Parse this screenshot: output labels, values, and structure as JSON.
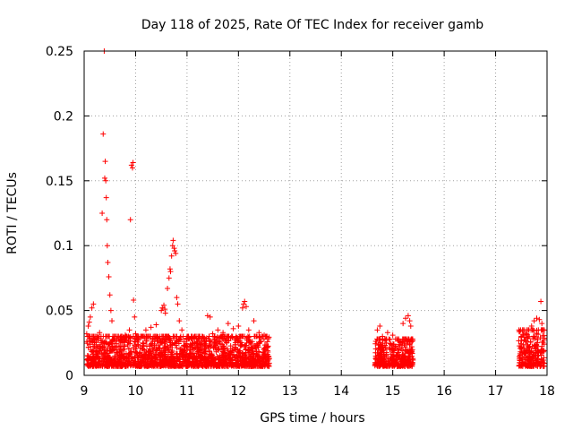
{
  "chart_data": {
    "type": "scatter",
    "title": "Day 118 of 2025, Rate Of TEC Index for receiver gamb",
    "xlabel": "GPS time / hours",
    "ylabel": "ROTI / TECUs",
    "xlim": [
      9,
      18
    ],
    "ylim": [
      0,
      0.25
    ],
    "xticks": [
      "9",
      "10",
      "11",
      "12",
      "13",
      "14",
      "15",
      "16",
      "17",
      "18"
    ],
    "yticks": [
      "0",
      "0.05",
      "0.1",
      "0.15",
      "0.2",
      "0.25"
    ],
    "grid": true,
    "marker": "+",
    "color": "#ff0000",
    "dense_bands": [
      {
        "x_range": [
          9.05,
          12.6
        ],
        "y_range": [
          0.003,
          0.03
        ]
      },
      {
        "x_range": [
          14.65,
          15.4
        ],
        "y_range": [
          0.003,
          0.028
        ]
      },
      {
        "x_range": [
          17.45,
          17.95
        ],
        "y_range": [
          0.003,
          0.035
        ]
      }
    ],
    "series": [
      {
        "name": "ROTI",
        "points": [
          [
            9.05,
            0.032
          ],
          [
            9.08,
            0.038
          ],
          [
            9.1,
            0.041
          ],
          [
            9.12,
            0.045
          ],
          [
            9.15,
            0.052
          ],
          [
            9.18,
            0.055
          ],
          [
            9.2,
            0.028
          ],
          [
            9.25,
            0.03
          ],
          [
            9.3,
            0.033
          ],
          [
            9.35,
            0.125
          ],
          [
            9.37,
            0.186
          ],
          [
            9.39,
            0.25
          ],
          [
            9.4,
            0.152
          ],
          [
            9.41,
            0.165
          ],
          [
            9.42,
            0.15
          ],
          [
            9.43,
            0.137
          ],
          [
            9.44,
            0.12
          ],
          [
            9.45,
            0.1
          ],
          [
            9.46,
            0.087
          ],
          [
            9.48,
            0.076
          ],
          [
            9.5,
            0.062
          ],
          [
            9.52,
            0.05
          ],
          [
            9.54,
            0.042
          ],
          [
            9.56,
            0.03
          ],
          [
            9.7,
            0.028
          ],
          [
            9.8,
            0.031
          ],
          [
            9.88,
            0.035
          ],
          [
            9.9,
            0.12
          ],
          [
            9.92,
            0.162
          ],
          [
            9.94,
            0.16
          ],
          [
            9.95,
            0.164
          ],
          [
            9.96,
            0.058
          ],
          [
            9.98,
            0.045
          ],
          [
            10.0,
            0.032
          ],
          [
            10.1,
            0.03
          ],
          [
            10.2,
            0.035
          ],
          [
            10.3,
            0.037
          ],
          [
            10.4,
            0.039
          ],
          [
            10.5,
            0.05
          ],
          [
            10.52,
            0.052
          ],
          [
            10.55,
            0.054
          ],
          [
            10.57,
            0.051
          ],
          [
            10.58,
            0.048
          ],
          [
            10.62,
            0.067
          ],
          [
            10.65,
            0.075
          ],
          [
            10.67,
            0.082
          ],
          [
            10.68,
            0.08
          ],
          [
            10.7,
            0.092
          ],
          [
            10.72,
            0.1
          ],
          [
            10.73,
            0.104
          ],
          [
            10.75,
            0.098
          ],
          [
            10.76,
            0.096
          ],
          [
            10.78,
            0.094
          ],
          [
            10.8,
            0.06
          ],
          [
            10.82,
            0.055
          ],
          [
            10.85,
            0.042
          ],
          [
            10.9,
            0.035
          ],
          [
            11.0,
            0.028
          ],
          [
            11.1,
            0.03
          ],
          [
            11.2,
            0.026
          ],
          [
            11.3,
            0.03
          ],
          [
            11.4,
            0.046
          ],
          [
            11.45,
            0.045
          ],
          [
            11.5,
            0.032
          ],
          [
            11.6,
            0.035
          ],
          [
            11.7,
            0.033
          ],
          [
            11.8,
            0.04
          ],
          [
            11.9,
            0.036
          ],
          [
            12.0,
            0.038
          ],
          [
            12.08,
            0.052
          ],
          [
            12.1,
            0.055
          ],
          [
            12.12,
            0.057
          ],
          [
            12.15,
            0.053
          ],
          [
            12.2,
            0.035
          ],
          [
            12.3,
            0.042
          ],
          [
            12.4,
            0.033
          ],
          [
            12.5,
            0.031
          ],
          [
            14.7,
            0.035
          ],
          [
            14.75,
            0.038
          ],
          [
            14.8,
            0.03
          ],
          [
            14.9,
            0.033
          ],
          [
            15.0,
            0.031
          ],
          [
            15.2,
            0.04
          ],
          [
            15.25,
            0.044
          ],
          [
            15.3,
            0.046
          ],
          [
            15.33,
            0.042
          ],
          [
            15.35,
            0.038
          ],
          [
            17.5,
            0.03
          ],
          [
            17.6,
            0.032
          ],
          [
            17.7,
            0.038
          ],
          [
            17.75,
            0.042
          ],
          [
            17.8,
            0.044
          ],
          [
            17.85,
            0.043
          ],
          [
            17.88,
            0.057
          ],
          [
            17.9,
            0.04
          ]
        ]
      }
    ]
  }
}
